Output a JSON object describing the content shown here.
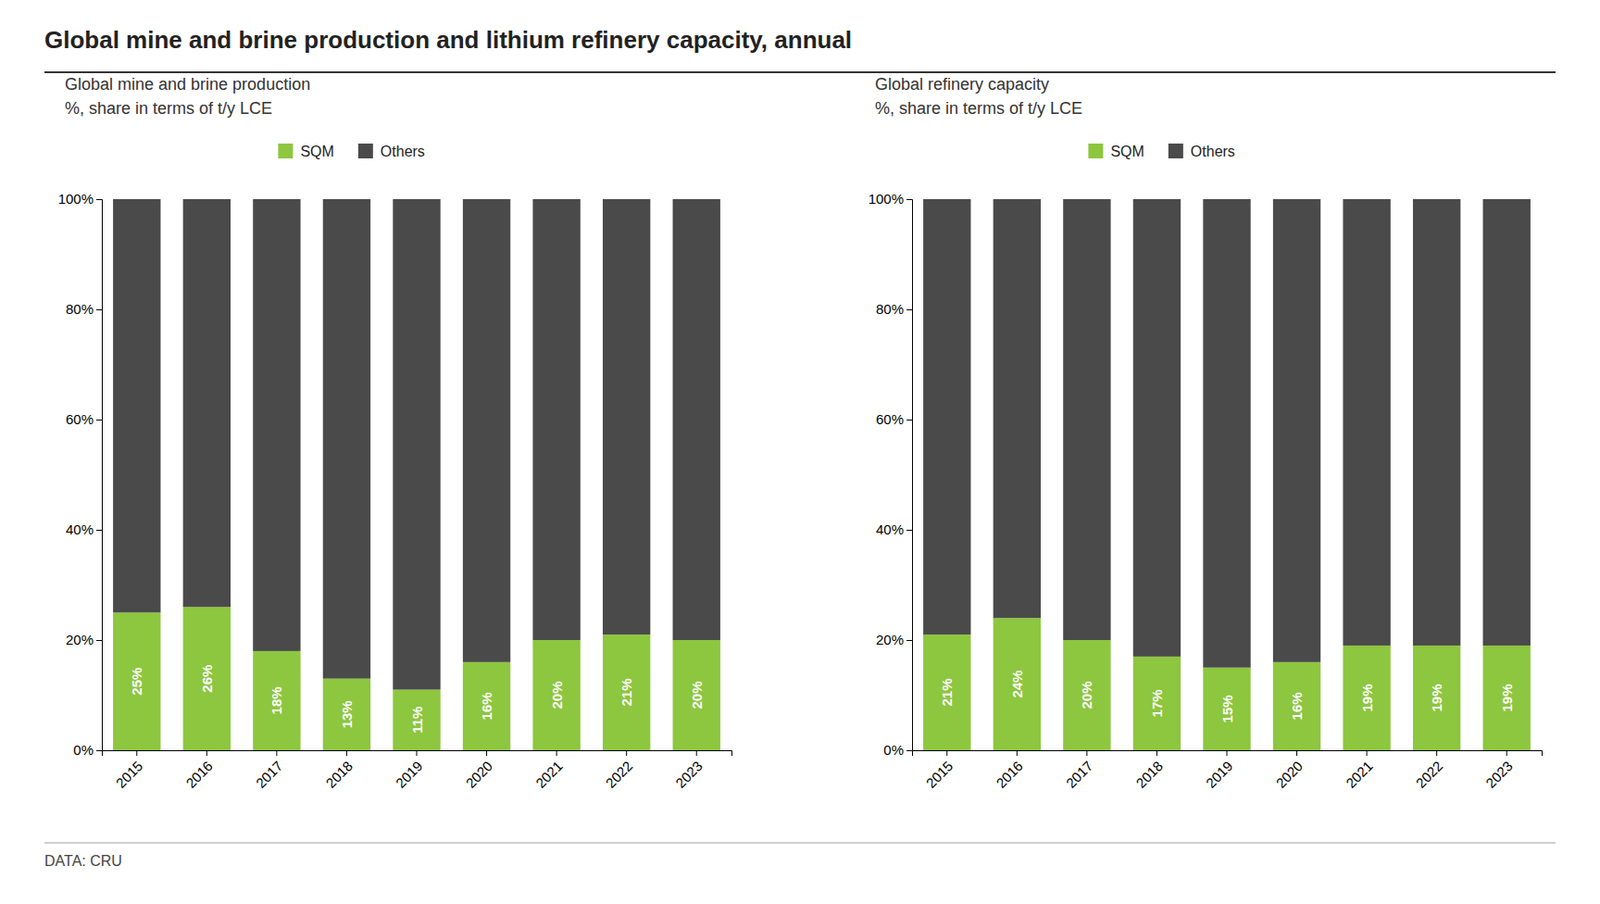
{
  "title": "Global mine and brine production and lithium refinery capacity, annual",
  "annotations": [
    "DATA: CRU"
  ],
  "chart_data": [
    {
      "type": "bar",
      "stacked": true,
      "title": "Global mine and brine production",
      "subtitle": "%, share in terms of t/y LCE",
      "categories": [
        "2015",
        "2016",
        "2017",
        "2018",
        "2019",
        "2020",
        "2021",
        "2022",
        "2023"
      ],
      "series": [
        {
          "name": "SQM",
          "color": "#8dc63f",
          "values": [
            25,
            26,
            18,
            13,
            11,
            16,
            20,
            21,
            20
          ],
          "data_labels": true,
          "value_labels": [
            "25%",
            "26%",
            "18%",
            "13%",
            "11%",
            "16%",
            "20%",
            "21%",
            "20%"
          ]
        },
        {
          "name": "Others",
          "color": "#4a4a4a",
          "values": [
            75,
            74,
            82,
            87,
            89,
            84,
            80,
            79,
            80
          ]
        }
      ],
      "ylim": [
        0,
        100
      ],
      "yticks": [
        {
          "value": 0,
          "label": "0%"
        },
        {
          "value": 20,
          "label": "20%"
        },
        {
          "value": 40,
          "label": "40%"
        },
        {
          "value": 60,
          "label": "60%"
        },
        {
          "value": 80,
          "label": "80%"
        },
        {
          "value": 100,
          "label": "100%"
        }
      ],
      "grid": false,
      "legend": "top"
    },
    {
      "type": "bar",
      "stacked": true,
      "title": "Global refinery capacity",
      "subtitle": "%, share in terms of t/y LCE",
      "categories": [
        "2015",
        "2016",
        "2017",
        "2018",
        "2019",
        "2020",
        "2021",
        "2022",
        "2023"
      ],
      "series": [
        {
          "name": "SQM",
          "color": "#8dc63f",
          "values": [
            21,
            24,
            20,
            17,
            15,
            16,
            19,
            19,
            19
          ],
          "data_labels": true,
          "value_labels": [
            "21%",
            "24%",
            "20%",
            "17%",
            "15%",
            "16%",
            "19%",
            "19%",
            "19%"
          ]
        },
        {
          "name": "Others",
          "color": "#4a4a4a",
          "values": [
            79,
            76,
            80,
            83,
            85,
            84,
            81,
            81,
            81
          ]
        }
      ],
      "ylim": [
        0,
        100
      ],
      "yticks": [
        {
          "value": 0,
          "label": "0%"
        },
        {
          "value": 20,
          "label": "20%"
        },
        {
          "value": 40,
          "label": "40%"
        },
        {
          "value": 60,
          "label": "60%"
        },
        {
          "value": 80,
          "label": "80%"
        },
        {
          "value": 100,
          "label": "100%"
        }
      ],
      "grid": false,
      "legend": "top"
    }
  ]
}
